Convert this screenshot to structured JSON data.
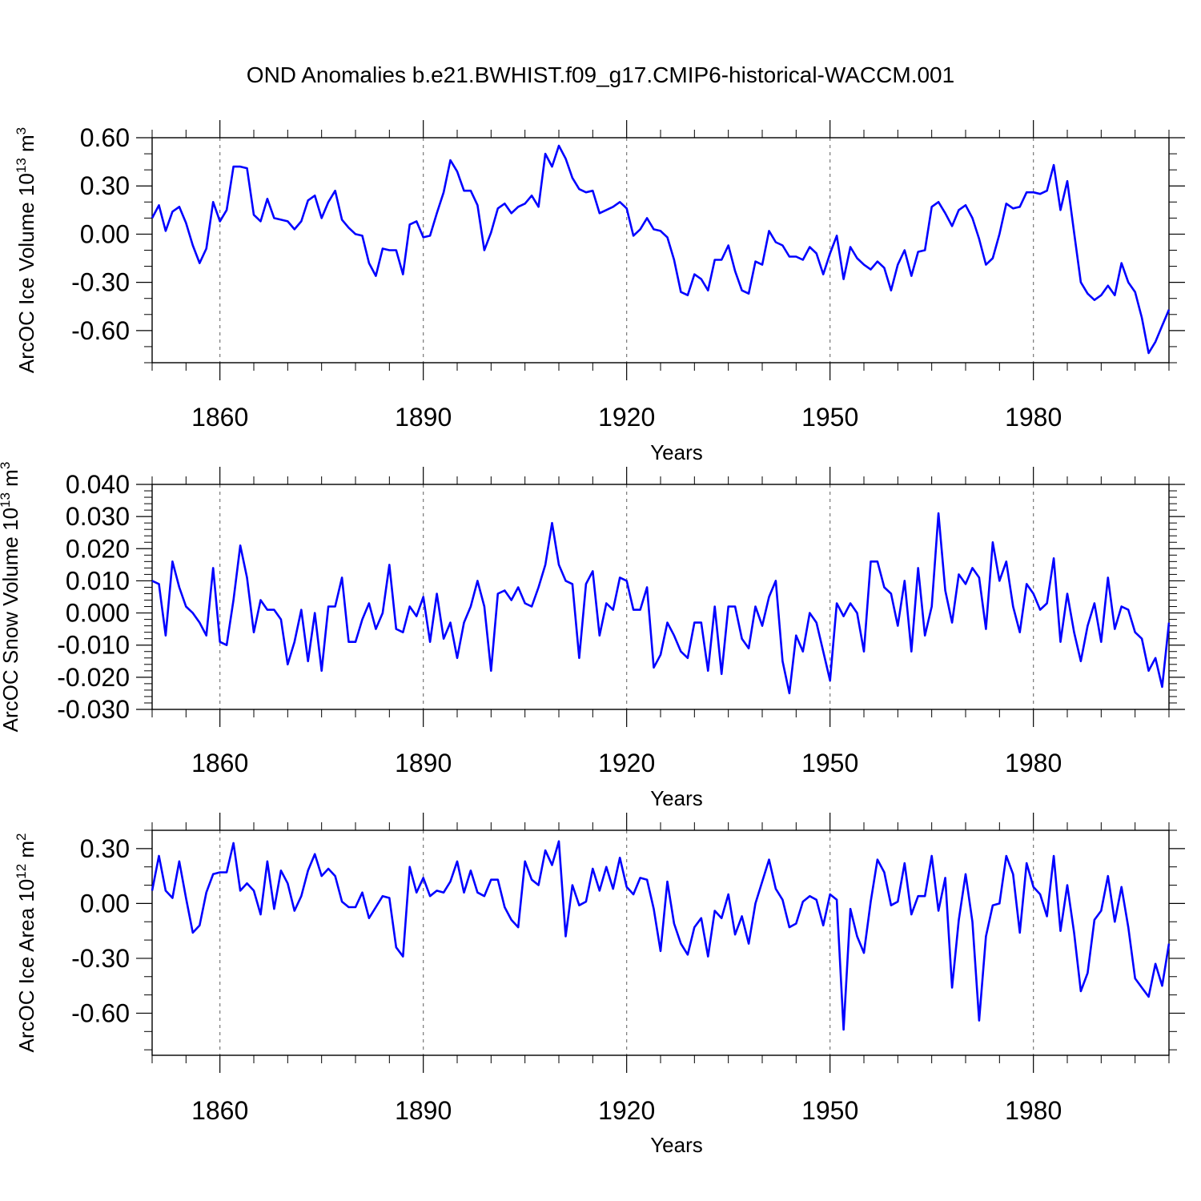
{
  "title": "OND Anomalies b.e21.BWHIST.f09_g17.CMIP6-historical-WACCM.001",
  "colors": {
    "line": "#0000ff",
    "frame": "#000000",
    "grid": "#777777"
  },
  "chart_data": [
    {
      "type": "line",
      "ylabel_text": "ArcOC Ice Volume 10",
      "ylabel_sup": "13",
      "ylabel_unit": "m",
      "ylabel_unit_sup": "3",
      "xlabel": "Years",
      "xlim": [
        1850,
        2000
      ],
      "ylim": [
        -0.8,
        0.6
      ],
      "yticks": [
        0.6,
        0.3,
        0.0,
        -0.3,
        -0.6
      ],
      "ytick_labels": [
        "0.60",
        "0.30",
        "0.00",
        "-0.30",
        "-0.60"
      ],
      "yminor_step": 0.1,
      "xticks": [
        1860,
        1890,
        1920,
        1950,
        1980
      ],
      "xtick_labels": [
        "1860",
        "1890",
        "1920",
        "1950",
        "1980"
      ],
      "grid_x": true,
      "x_start": 1850,
      "values": [
        0.1,
        0.18,
        0.02,
        0.14,
        0.17,
        0.07,
        -0.07,
        -0.18,
        -0.09,
        0.2,
        0.08,
        0.15,
        0.42,
        0.42,
        0.41,
        0.12,
        0.08,
        0.22,
        0.1,
        0.09,
        0.08,
        0.03,
        0.08,
        0.21,
        0.24,
        0.1,
        0.2,
        0.27,
        0.09,
        0.04,
        0.0,
        -0.01,
        -0.18,
        -0.26,
        -0.09,
        -0.1,
        -0.1,
        -0.25,
        0.06,
        0.08,
        -0.02,
        -0.01,
        0.13,
        0.26,
        0.46,
        0.39,
        0.27,
        0.27,
        0.18,
        -0.1,
        0.01,
        0.16,
        0.19,
        0.13,
        0.17,
        0.19,
        0.24,
        0.17,
        0.5,
        0.42,
        0.55,
        0.47,
        0.35,
        0.28,
        0.26,
        0.27,
        0.13,
        0.15,
        0.17,
        0.2,
        0.16,
        -0.01,
        0.03,
        0.1,
        0.03,
        0.02,
        -0.02,
        -0.16,
        -0.36,
        -0.38,
        -0.25,
        -0.28,
        -0.35,
        -0.16,
        -0.16,
        -0.07,
        -0.23,
        -0.35,
        -0.37,
        -0.17,
        -0.19,
        0.02,
        -0.05,
        -0.07,
        -0.14,
        -0.14,
        -0.16,
        -0.08,
        -0.12,
        -0.25,
        -0.12,
        -0.01,
        -0.28,
        -0.08,
        -0.15,
        -0.19,
        -0.22,
        -0.17,
        -0.21,
        -0.35,
        -0.19,
        -0.1,
        -0.26,
        -0.11,
        -0.1,
        0.17,
        0.2,
        0.13,
        0.05,
        0.15,
        0.18,
        0.1,
        -0.03,
        -0.19,
        -0.15,
        0.0,
        0.19,
        0.16,
        0.17,
        0.26,
        0.26,
        0.25,
        0.27,
        0.43,
        0.15,
        0.33,
        0.01,
        -0.3,
        -0.37,
        -0.41,
        -0.38,
        -0.32,
        -0.38,
        -0.18,
        -0.3,
        -0.36,
        -0.52,
        -0.74,
        -0.67,
        -0.57,
        -0.47
      ]
    },
    {
      "type": "line",
      "ylabel_text": "ArcOC Snow Volume 10",
      "ylabel_sup": "13",
      "ylabel_unit": "m",
      "ylabel_unit_sup": "3",
      "xlabel": "Years",
      "xlim": [
        1850,
        2000
      ],
      "ylim": [
        -0.03,
        0.04
      ],
      "yticks": [
        0.04,
        0.03,
        0.02,
        0.01,
        0.0,
        -0.01,
        -0.02,
        -0.03
      ],
      "ytick_labels": [
        "0.040",
        "0.030",
        "0.020",
        "0.010",
        "0.000",
        "-0.010",
        "-0.020",
        "-0.030"
      ],
      "yminor_step": 0.002,
      "xticks": [
        1860,
        1890,
        1920,
        1950,
        1980
      ],
      "xtick_labels": [
        "1860",
        "1890",
        "1920",
        "1950",
        "1980"
      ],
      "grid_x": true,
      "x_start": 1850,
      "values": [
        0.01,
        0.009,
        -0.007,
        0.016,
        0.008,
        0.002,
        0.0,
        -0.003,
        -0.007,
        0.014,
        -0.009,
        -0.01,
        0.004,
        0.021,
        0.011,
        -0.006,
        0.004,
        0.001,
        0.001,
        -0.002,
        -0.016,
        -0.009,
        0.001,
        -0.015,
        0.0,
        -0.018,
        0.002,
        0.002,
        0.011,
        -0.009,
        -0.009,
        -0.002,
        0.003,
        -0.005,
        0.0,
        0.015,
        -0.005,
        -0.006,
        0.002,
        -0.001,
        0.005,
        -0.009,
        0.006,
        -0.008,
        -0.003,
        -0.014,
        -0.003,
        0.002,
        0.01,
        0.002,
        -0.018,
        0.006,
        0.007,
        0.004,
        0.008,
        0.003,
        0.002,
        0.008,
        0.015,
        0.028,
        0.015,
        0.01,
        0.009,
        -0.014,
        0.009,
        0.013,
        -0.007,
        0.003,
        0.001,
        0.011,
        0.01,
        0.001,
        0.001,
        0.008,
        -0.017,
        -0.013,
        -0.003,
        -0.007,
        -0.012,
        -0.014,
        -0.003,
        -0.003,
        -0.018,
        0.002,
        -0.019,
        0.002,
        0.002,
        -0.008,
        -0.011,
        0.002,
        -0.004,
        0.005,
        0.01,
        -0.015,
        -0.025,
        -0.007,
        -0.012,
        0.0,
        -0.003,
        -0.012,
        -0.021,
        0.003,
        -0.001,
        0.003,
        0.0,
        -0.012,
        0.016,
        0.016,
        0.008,
        0.006,
        -0.004,
        0.01,
        -0.012,
        0.014,
        -0.007,
        0.002,
        0.031,
        0.007,
        -0.003,
        0.012,
        0.009,
        0.014,
        0.011,
        -0.005,
        0.022,
        0.01,
        0.016,
        0.002,
        -0.006,
        0.009,
        0.006,
        0.001,
        0.003,
        0.017,
        -0.009,
        0.006,
        -0.006,
        -0.015,
        -0.004,
        0.003,
        -0.009,
        0.011,
        -0.005,
        0.002,
        0.001,
        -0.006,
        -0.008,
        -0.018,
        -0.014,
        -0.023,
        -0.003
      ]
    },
    {
      "type": "line",
      "ylabel_text": "ArcOC Ice Area 10",
      "ylabel_sup": "12",
      "ylabel_unit": "m",
      "ylabel_unit_sup": "2",
      "xlabel": "Years",
      "xlim": [
        1850,
        2000
      ],
      "ylim": [
        -0.83,
        0.4
      ],
      "yticks": [
        0.3,
        0.0,
        -0.3,
        -0.6
      ],
      "ytick_labels": [
        "0.30",
        "0.00",
        "-0.30",
        "-0.60"
      ],
      "yminor_step": 0.1,
      "xticks": [
        1860,
        1890,
        1920,
        1950,
        1980
      ],
      "xtick_labels": [
        "1860",
        "1890",
        "1920",
        "1950",
        "1980"
      ],
      "grid_x": true,
      "x_start": 1850,
      "values": [
        0.07,
        0.26,
        0.07,
        0.03,
        0.23,
        0.03,
        -0.16,
        -0.12,
        0.06,
        0.16,
        0.17,
        0.17,
        0.33,
        0.07,
        0.11,
        0.07,
        -0.06,
        0.23,
        -0.03,
        0.18,
        0.11,
        -0.04,
        0.04,
        0.18,
        0.27,
        0.15,
        0.19,
        0.15,
        0.01,
        -0.02,
        -0.02,
        0.06,
        -0.08,
        -0.02,
        0.04,
        0.03,
        -0.24,
        -0.29,
        0.2,
        0.06,
        0.14,
        0.04,
        0.07,
        0.06,
        0.12,
        0.23,
        0.06,
        0.18,
        0.06,
        0.04,
        0.13,
        0.13,
        -0.02,
        -0.09,
        -0.13,
        0.23,
        0.13,
        0.1,
        0.29,
        0.21,
        0.34,
        -0.18,
        0.1,
        -0.01,
        0.01,
        0.19,
        0.07,
        0.2,
        0.08,
        0.25,
        0.09,
        0.05,
        0.14,
        0.13,
        -0.03,
        -0.26,
        0.12,
        -0.11,
        -0.22,
        -0.28,
        -0.13,
        -0.08,
        -0.29,
        -0.04,
        -0.08,
        0.05,
        -0.17,
        -0.07,
        -0.22,
        0.0,
        0.12,
        0.24,
        0.08,
        0.02,
        -0.13,
        -0.11,
        0.01,
        0.04,
        0.02,
        -0.12,
        0.05,
        0.02,
        -0.69,
        -0.03,
        -0.18,
        -0.27,
        0.01,
        0.24,
        0.17,
        -0.01,
        0.01,
        0.22,
        -0.06,
        0.04,
        0.04,
        0.26,
        -0.04,
        0.14,
        -0.46,
        -0.09,
        0.16,
        -0.1,
        -0.64,
        -0.18,
        -0.01,
        0.0,
        0.26,
        0.16,
        -0.16,
        0.22,
        0.09,
        0.05,
        -0.07,
        0.26,
        -0.15,
        0.1,
        -0.16,
        -0.48,
        -0.38,
        -0.09,
        -0.04,
        0.15,
        -0.1,
        0.09,
        -0.13,
        -0.41,
        -0.46,
        -0.51,
        -0.33,
        -0.45,
        -0.22
      ]
    }
  ]
}
